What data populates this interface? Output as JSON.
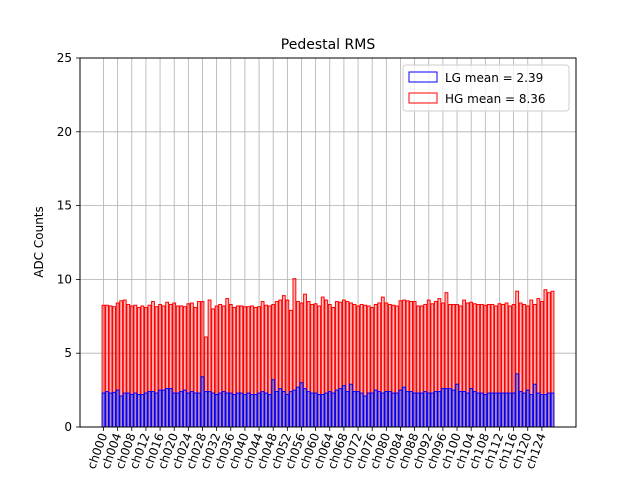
{
  "chart_data": {
    "type": "bar",
    "title": "Pedestal RMS",
    "xlabel": "",
    "ylabel": "ADC Counts",
    "ylim": [
      0,
      25
    ],
    "yticks": [
      0,
      5,
      10,
      15,
      20,
      25
    ],
    "grid": true,
    "legend_position": "top-right",
    "categories": [
      "ch000",
      "ch001",
      "ch002",
      "ch003",
      "ch004",
      "ch005",
      "ch006",
      "ch007",
      "ch008",
      "ch009",
      "ch010",
      "ch011",
      "ch012",
      "ch013",
      "ch014",
      "ch015",
      "ch016",
      "ch017",
      "ch018",
      "ch019",
      "ch020",
      "ch021",
      "ch022",
      "ch023",
      "ch024",
      "ch025",
      "ch026",
      "ch027",
      "ch028",
      "ch029",
      "ch030",
      "ch031",
      "ch032",
      "ch033",
      "ch034",
      "ch035",
      "ch036",
      "ch037",
      "ch038",
      "ch039",
      "ch040",
      "ch041",
      "ch042",
      "ch043",
      "ch044",
      "ch045",
      "ch046",
      "ch047",
      "ch048",
      "ch049",
      "ch050",
      "ch051",
      "ch052",
      "ch053",
      "ch054",
      "ch055",
      "ch056",
      "ch057",
      "ch058",
      "ch059",
      "ch060",
      "ch061",
      "ch062",
      "ch063",
      "ch064",
      "ch065",
      "ch066",
      "ch067",
      "ch068",
      "ch069",
      "ch070",
      "ch071",
      "ch072",
      "ch073",
      "ch074",
      "ch075",
      "ch076",
      "ch077",
      "ch078",
      "ch079",
      "ch080",
      "ch081",
      "ch082",
      "ch083",
      "ch084",
      "ch085",
      "ch086",
      "ch087",
      "ch088",
      "ch089",
      "ch090",
      "ch091",
      "ch092",
      "ch093",
      "ch094",
      "ch095",
      "ch096",
      "ch097",
      "ch098",
      "ch099",
      "ch100",
      "ch101",
      "ch102",
      "ch103",
      "ch104",
      "ch105",
      "ch106",
      "ch107",
      "ch108",
      "ch109",
      "ch110",
      "ch111",
      "ch112",
      "ch113",
      "ch114",
      "ch115",
      "ch116",
      "ch117",
      "ch118",
      "ch119",
      "ch120",
      "ch121",
      "ch122",
      "ch123",
      "ch124",
      "ch125",
      "ch126",
      "ch127"
    ],
    "tick_labels": [
      "ch000",
      "ch004",
      "ch008",
      "ch012",
      "ch016",
      "ch020",
      "ch024",
      "ch028",
      "ch032",
      "ch036",
      "ch040",
      "ch044",
      "ch048",
      "ch052",
      "ch056",
      "ch060",
      "ch064",
      "ch068",
      "ch072",
      "ch076",
      "ch080",
      "ch084",
      "ch088",
      "ch092",
      "ch096",
      "ch100",
      "ch104",
      "ch108",
      "ch112",
      "ch116",
      "ch120",
      "ch124"
    ],
    "series": [
      {
        "name": "HG mean = 8.36",
        "edge_color": "#ff0000",
        "fill_color": "#ff0000",
        "values": [
          8.25,
          8.25,
          8.2,
          8.15,
          8.4,
          8.55,
          8.6,
          8.3,
          8.2,
          8.25,
          8.1,
          8.2,
          8.1,
          8.25,
          8.5,
          8.15,
          8.3,
          8.2,
          8.45,
          8.3,
          8.4,
          8.2,
          8.2,
          8.15,
          8.35,
          8.4,
          8.1,
          8.5,
          8.5,
          6.1,
          8.6,
          8.0,
          8.2,
          8.3,
          8.2,
          8.7,
          8.3,
          8.1,
          8.2,
          8.2,
          8.15,
          8.15,
          8.2,
          8.1,
          8.15,
          8.5,
          8.25,
          8.2,
          8.3,
          8.5,
          8.6,
          8.9,
          8.6,
          7.9,
          10.05,
          8.5,
          8.4,
          9.0,
          8.5,
          8.3,
          8.35,
          8.2,
          8.8,
          8.6,
          8.3,
          8.1,
          8.5,
          8.45,
          8.6,
          8.5,
          8.4,
          8.3,
          8.2,
          8.3,
          8.25,
          8.2,
          8.1,
          8.3,
          8.4,
          8.8,
          8.4,
          8.3,
          8.25,
          8.2,
          8.55,
          8.6,
          8.55,
          8.5,
          8.5,
          8.2,
          8.2,
          8.3,
          8.6,
          8.35,
          8.5,
          8.7,
          8.4,
          9.1,
          8.3,
          8.3,
          8.3,
          8.2,
          8.6,
          8.4,
          8.45,
          8.35,
          8.3,
          8.3,
          8.25,
          8.3,
          8.3,
          8.2,
          8.35,
          8.3,
          8.4,
          8.2,
          8.3,
          9.2,
          8.4,
          8.3,
          8.2,
          8.6,
          8.3,
          8.7,
          8.5,
          9.3,
          9.1,
          9.2
        ]
      },
      {
        "name": "LG mean = 2.39",
        "edge_color": "#0000ff",
        "fill_color": "#6464c8",
        "values": [
          2.3,
          2.4,
          2.3,
          2.35,
          2.5,
          2.1,
          2.3,
          2.3,
          2.2,
          2.3,
          2.2,
          2.2,
          2.3,
          2.4,
          2.4,
          2.3,
          2.5,
          2.5,
          2.6,
          2.6,
          2.3,
          2.3,
          2.4,
          2.5,
          2.3,
          2.4,
          2.3,
          2.3,
          3.4,
          2.4,
          2.4,
          2.3,
          2.2,
          2.3,
          2.4,
          2.3,
          2.3,
          2.2,
          2.3,
          2.3,
          2.2,
          2.3,
          2.2,
          2.2,
          2.3,
          2.4,
          2.3,
          2.2,
          3.2,
          2.4,
          2.6,
          2.4,
          2.2,
          2.4,
          2.5,
          2.7,
          3.0,
          2.6,
          2.4,
          2.3,
          2.3,
          2.2,
          2.2,
          2.3,
          2.4,
          2.3,
          2.5,
          2.6,
          2.8,
          2.4,
          2.9,
          2.4,
          2.4,
          2.3,
          2.1,
          2.3,
          2.3,
          2.5,
          2.4,
          2.3,
          2.4,
          2.4,
          2.3,
          2.3,
          2.5,
          2.7,
          2.4,
          2.4,
          2.3,
          2.3,
          2.3,
          2.4,
          2.3,
          2.3,
          2.4,
          2.4,
          2.6,
          2.6,
          2.6,
          2.5,
          2.9,
          2.4,
          2.4,
          2.3,
          2.6,
          2.4,
          2.3,
          2.3,
          2.2,
          2.3,
          2.3,
          2.3,
          2.3,
          2.3,
          2.3,
          2.3,
          2.3,
          3.6,
          2.4,
          2.3,
          2.5,
          2.2,
          2.9,
          2.3,
          2.2,
          2.2,
          2.3,
          2.3
        ]
      }
    ],
    "legend": [
      {
        "label": "LG mean = 2.39",
        "edge_color": "#0000ff"
      },
      {
        "label": "HG mean = 8.36",
        "edge_color": "#ff0000"
      }
    ]
  }
}
